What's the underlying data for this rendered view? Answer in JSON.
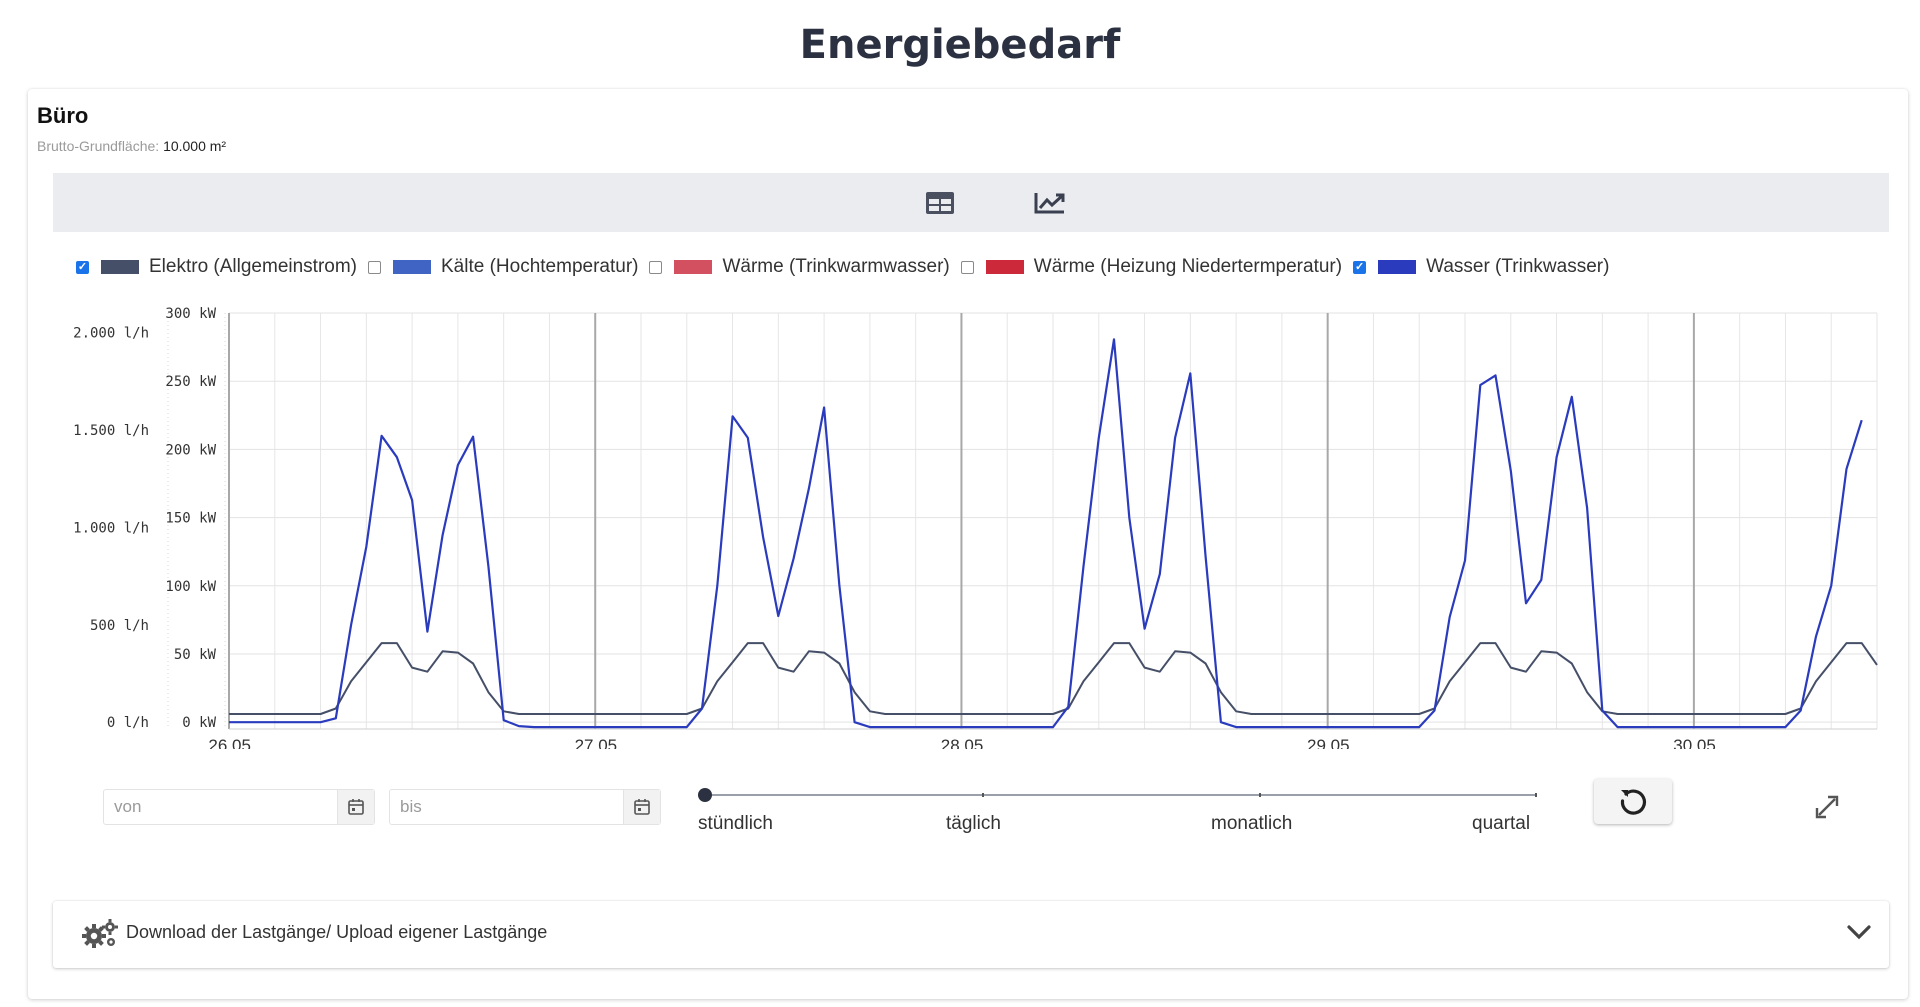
{
  "page": {
    "title": "Energiebedarf"
  },
  "section": {
    "title": "Büro",
    "area_label": "Brutto-Grundfläche:",
    "area_value": "10.000 m²"
  },
  "toolbar": {
    "icons": [
      "table-icon",
      "line-chart-icon"
    ]
  },
  "legend": [
    {
      "label": "Elektro (Allgemeinstrom)",
      "checked": true,
      "color": "#454f68"
    },
    {
      "label": "Kälte (Hochtemperatur)",
      "checked": false,
      "color": "#3f64c4"
    },
    {
      "label": "Wärme (Trinkwarmwasser)",
      "checked": false,
      "color": "#d2505f"
    },
    {
      "label": "Wärme (Heizung Niedertermperatur)",
      "checked": false,
      "color": "#cc2a3a"
    },
    {
      "label": "Wasser (Trinkwasser)",
      "checked": true,
      "color": "#2a3bbe"
    }
  ],
  "chart_data": {
    "type": "line",
    "x_tick_labels": [
      "26.05.",
      "27.05.",
      "28.05.",
      "29.05.",
      "30.05."
    ],
    "x_unit": "hour",
    "y_axes": [
      {
        "unit": "kW",
        "ticks": [
          0,
          50,
          100,
          150,
          200,
          250,
          300
        ],
        "tick_labels": [
          "0 kW",
          "50 kW",
          "100 kW",
          "150 kW",
          "200 kW",
          "250 kW",
          "300 kW"
        ],
        "ylim": [
          -5,
          300
        ]
      },
      {
        "unit": "l/h",
        "ticks": [
          0,
          500,
          1000,
          1500,
          2000
        ],
        "tick_labels": [
          "0 l/h",
          "500 l/h",
          "1.000 l/h",
          "1.500 l/h",
          "2.000 l/h"
        ],
        "ylim": [
          -35,
          2100
        ]
      }
    ],
    "grid": true,
    "series": [
      {
        "name": "Elektro (Allgemeinstrom)",
        "color": "#454f68",
        "axis": "kW",
        "points": [
          [
            0,
            6
          ],
          [
            1,
            6
          ],
          [
            2,
            6
          ],
          [
            3,
            6
          ],
          [
            4,
            6
          ],
          [
            5,
            6
          ],
          [
            6,
            6
          ],
          [
            7,
            10
          ],
          [
            8,
            30
          ],
          [
            9,
            44
          ],
          [
            10,
            58
          ],
          [
            11,
            58
          ],
          [
            12,
            40
          ],
          [
            13,
            37
          ],
          [
            14,
            52
          ],
          [
            15,
            51
          ],
          [
            16,
            43
          ],
          [
            17,
            22
          ],
          [
            18,
            8
          ],
          [
            19,
            6
          ],
          [
            20,
            6
          ],
          [
            21,
            6
          ],
          [
            22,
            6
          ],
          [
            23,
            6
          ],
          [
            24,
            6
          ],
          [
            25,
            6
          ],
          [
            26,
            6
          ],
          [
            27,
            6
          ],
          [
            28,
            6
          ],
          [
            29,
            6
          ],
          [
            30,
            6
          ],
          [
            31,
            10
          ],
          [
            32,
            30
          ],
          [
            33,
            44
          ],
          [
            34,
            58
          ],
          [
            35,
            58
          ],
          [
            36,
            40
          ],
          [
            37,
            37
          ],
          [
            38,
            52
          ],
          [
            39,
            51
          ],
          [
            40,
            43
          ],
          [
            41,
            22
          ],
          [
            42,
            8
          ],
          [
            43,
            6
          ],
          [
            44,
            6
          ],
          [
            45,
            6
          ],
          [
            46,
            6
          ],
          [
            47,
            6
          ],
          [
            48,
            6
          ],
          [
            49,
            6
          ],
          [
            50,
            6
          ],
          [
            51,
            6
          ],
          [
            52,
            6
          ],
          [
            53,
            6
          ],
          [
            54,
            6
          ],
          [
            55,
            10
          ],
          [
            56,
            30
          ],
          [
            57,
            44
          ],
          [
            58,
            58
          ],
          [
            59,
            58
          ],
          [
            60,
            40
          ],
          [
            61,
            37
          ],
          [
            62,
            52
          ],
          [
            63,
            51
          ],
          [
            64,
            43
          ],
          [
            65,
            22
          ],
          [
            66,
            8
          ],
          [
            67,
            6
          ],
          [
            68,
            6
          ],
          [
            69,
            6
          ],
          [
            70,
            6
          ],
          [
            71,
            6
          ],
          [
            72,
            6
          ],
          [
            73,
            6
          ],
          [
            74,
            6
          ],
          [
            75,
            6
          ],
          [
            76,
            6
          ],
          [
            77,
            6
          ],
          [
            78,
            6
          ],
          [
            79,
            10
          ],
          [
            80,
            30
          ],
          [
            81,
            44
          ],
          [
            82,
            58
          ],
          [
            83,
            58
          ],
          [
            84,
            40
          ],
          [
            85,
            37
          ],
          [
            86,
            52
          ],
          [
            87,
            51
          ],
          [
            88,
            43
          ],
          [
            89,
            22
          ],
          [
            90,
            8
          ],
          [
            91,
            6
          ],
          [
            92,
            6
          ],
          [
            93,
            6
          ],
          [
            94,
            6
          ],
          [
            95,
            6
          ],
          [
            96,
            6
          ],
          [
            97,
            6
          ],
          [
            98,
            6
          ],
          [
            99,
            6
          ],
          [
            100,
            6
          ],
          [
            101,
            6
          ],
          [
            102,
            6
          ],
          [
            103,
            10
          ],
          [
            104,
            30
          ],
          [
            105,
            44
          ],
          [
            106,
            58
          ],
          [
            107,
            58
          ],
          [
            108,
            42
          ]
        ]
      },
      {
        "name": "Wasser (Trinkwasser)",
        "color": "#2a3bbe",
        "axis": "l/h",
        "points": [
          [
            0,
            0
          ],
          [
            1,
            0
          ],
          [
            2,
            0
          ],
          [
            3,
            0
          ],
          [
            4,
            0
          ],
          [
            5,
            0
          ],
          [
            6,
            0
          ],
          [
            7,
            20
          ],
          [
            8,
            500
          ],
          [
            9,
            900
          ],
          [
            10,
            1470
          ],
          [
            11,
            1360
          ],
          [
            12,
            1140
          ],
          [
            13,
            465
          ],
          [
            14,
            960
          ],
          [
            15,
            1320
          ],
          [
            16,
            1465
          ],
          [
            17,
            800
          ],
          [
            18,
            10
          ],
          [
            19,
            -20
          ],
          [
            20,
            -25
          ],
          [
            21,
            -25
          ],
          [
            22,
            -25
          ],
          [
            23,
            -25
          ],
          [
            24,
            -25
          ],
          [
            25,
            -25
          ],
          [
            26,
            -25
          ],
          [
            27,
            -25
          ],
          [
            28,
            -25
          ],
          [
            29,
            -25
          ],
          [
            30,
            -25
          ],
          [
            31,
            70
          ],
          [
            32,
            700
          ],
          [
            33,
            1570
          ],
          [
            34,
            1460
          ],
          [
            35,
            950
          ],
          [
            36,
            545
          ],
          [
            37,
            840
          ],
          [
            38,
            1200
          ],
          [
            39,
            1615
          ],
          [
            40,
            700
          ],
          [
            41,
            0
          ],
          [
            42,
            -25
          ],
          [
            43,
            -25
          ],
          [
            44,
            -25
          ],
          [
            45,
            -25
          ],
          [
            46,
            -25
          ],
          [
            47,
            -25
          ],
          [
            48,
            -25
          ],
          [
            49,
            -25
          ],
          [
            50,
            -25
          ],
          [
            51,
            -25
          ],
          [
            52,
            -25
          ],
          [
            53,
            -25
          ],
          [
            54,
            -25
          ],
          [
            55,
            80
          ],
          [
            56,
            800
          ],
          [
            57,
            1460
          ],
          [
            58,
            1965
          ],
          [
            59,
            1050
          ],
          [
            60,
            480
          ],
          [
            61,
            760
          ],
          [
            62,
            1460
          ],
          [
            63,
            1790
          ],
          [
            64,
            850
          ],
          [
            65,
            0
          ],
          [
            66,
            -25
          ],
          [
            67,
            -25
          ],
          [
            68,
            -25
          ],
          [
            69,
            -25
          ],
          [
            70,
            -25
          ],
          [
            71,
            -25
          ],
          [
            72,
            -25
          ],
          [
            73,
            -25
          ],
          [
            74,
            -25
          ],
          [
            75,
            -25
          ],
          [
            76,
            -25
          ],
          [
            77,
            -25
          ],
          [
            78,
            -25
          ],
          [
            79,
            60
          ],
          [
            80,
            540
          ],
          [
            81,
            830
          ],
          [
            82,
            1730
          ],
          [
            83,
            1780
          ],
          [
            84,
            1290
          ],
          [
            85,
            610
          ],
          [
            86,
            730
          ],
          [
            87,
            1360
          ],
          [
            88,
            1670
          ],
          [
            89,
            1100
          ],
          [
            90,
            60
          ],
          [
            91,
            -25
          ],
          [
            92,
            -25
          ],
          [
            93,
            -25
          ],
          [
            94,
            -25
          ],
          [
            95,
            -25
          ],
          [
            96,
            -25
          ],
          [
            97,
            -25
          ],
          [
            98,
            -25
          ],
          [
            99,
            -25
          ],
          [
            100,
            -25
          ],
          [
            101,
            -25
          ],
          [
            102,
            -25
          ],
          [
            103,
            60
          ],
          [
            104,
            440
          ],
          [
            105,
            700
          ],
          [
            106,
            1300
          ],
          [
            107,
            1550
          ]
        ]
      }
    ]
  },
  "date_filters": {
    "from_placeholder": "von",
    "to_placeholder": "bis"
  },
  "resolution_slider": {
    "labels": [
      "stündlich",
      "täglich",
      "monatlich",
      "quartal"
    ],
    "selected": "stündlich"
  },
  "accordion": {
    "label": "Download der Lastgänge/ Upload eigener Lastgänge"
  }
}
